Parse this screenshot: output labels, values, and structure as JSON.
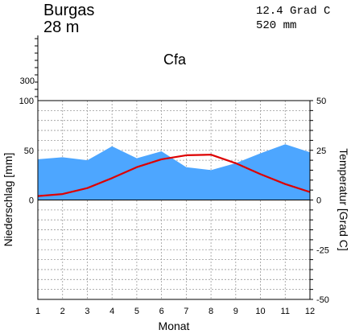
{
  "header": {
    "station": "Burgas",
    "elevation": "28 m",
    "annual_temperature": "12.4 Grad C",
    "annual_precipitation": "520 mm",
    "climate_class": "Cfa"
  },
  "chart_data": {
    "type": "line",
    "title": "Burgas",
    "xlabel": "Monat",
    "ylabel_left": "Niederschlag [mm]",
    "ylabel_right": "Temperatur [Grad C]",
    "x": [
      1,
      2,
      3,
      4,
      5,
      6,
      7,
      8,
      9,
      10,
      11,
      12
    ],
    "x_ticks": [
      "1",
      "2",
      "3",
      "4",
      "5",
      "6",
      "7",
      "8",
      "9",
      "10",
      "11",
      "12"
    ],
    "precip_axis": {
      "ylim": [
        0,
        100
      ],
      "ticks": [
        "0",
        "50",
        "100"
      ],
      "upper_tick": "300"
    },
    "temp_axis": {
      "ylim": [
        -50,
        50
      ],
      "ticks": [
        "50",
        "25",
        "0",
        "-25",
        "-50"
      ]
    },
    "grid": true,
    "series": [
      {
        "kind": "area",
        "axis": "precipitation",
        "color": "#4da6ff",
        "values": [
          41,
          43,
          40,
          54,
          42,
          49,
          33,
          30,
          37,
          47,
          56,
          48
        ]
      },
      {
        "kind": "line",
        "axis": "temperature",
        "color": "#dd0000",
        "values": [
          2.0,
          3.0,
          6.0,
          11.0,
          16.5,
          20.5,
          22.5,
          22.8,
          18.5,
          13.0,
          8.0,
          4.0
        ]
      }
    ]
  }
}
